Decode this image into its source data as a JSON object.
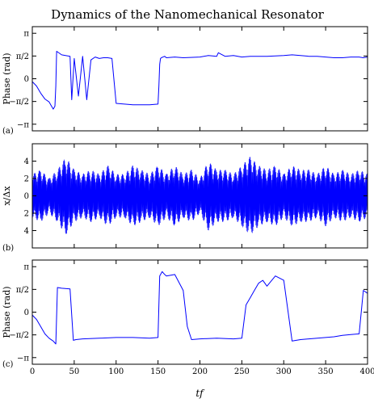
{
  "chart_data": {
    "type": "line",
    "title": "Dynamics of the Nanomechanical Resonator",
    "xlabel": "tf",
    "xlim": [
      0,
      400
    ],
    "x_ticks": [
      0,
      50,
      100,
      150,
      200,
      250,
      300,
      350,
      400
    ],
    "x_tick_labels": [
      "0",
      "50",
      "100",
      "150",
      "200",
      "250",
      "300",
      "350",
      "400"
    ],
    "line_color": "#0000ff",
    "panels": [
      {
        "label": "(a)",
        "ylabel": "Phase (rad)",
        "ylim": [
          -3.6,
          3.6
        ],
        "y_ticks": [
          3.1416,
          1.5708,
          0,
          -1.5708,
          -3.1416
        ],
        "y_tick_labels": [
          "π",
          "π/2",
          "0",
          "−π/2",
          "−π"
        ],
        "series": [
          {
            "x": [
              0,
              5,
              10,
              15,
              20,
              22,
              25,
              27,
              28,
              29,
              35,
              45,
              47,
              50,
              55,
              60,
              65,
              70,
              75,
              80,
              85,
              90,
              95,
              100,
              110,
              120,
              140,
              150,
              151,
              152,
              153,
              154,
              156,
              158,
              160,
              170,
              180,
              200,
              210,
              220,
              222,
              230,
              240,
              250,
              260,
              280,
              300,
              310,
              320,
              330,
              340,
              350,
              360,
              370,
              380,
              390,
              395,
              400
            ],
            "y": [
              -0.2,
              -0.5,
              -1.0,
              -1.4,
              -1.6,
              -1.8,
              -2.1,
              -1.9,
              -0.5,
              1.9,
              1.65,
              1.55,
              -1.45,
              1.4,
              -1.2,
              1.55,
              -1.45,
              1.3,
              1.5,
              1.4,
              1.45,
              1.45,
              1.4,
              -1.7,
              -1.75,
              -1.8,
              -1.8,
              -1.75,
              -0.5,
              1.0,
              1.4,
              1.45,
              1.5,
              1.55,
              1.45,
              1.5,
              1.45,
              1.5,
              1.6,
              1.55,
              1.8,
              1.55,
              1.6,
              1.5,
              1.55,
              1.55,
              1.6,
              1.65,
              1.6,
              1.55,
              1.55,
              1.5,
              1.45,
              1.45,
              1.5,
              1.5,
              1.45,
              1.5
            ]
          }
        ]
      },
      {
        "label": "(b)",
        "ylabel": "x/Δx",
        "ylim": [
          -6,
          6
        ],
        "y_ticks": [
          4,
          2,
          0,
          -2,
          -4
        ],
        "y_tick_labels": [
          "4",
          "2",
          "0",
          "2",
          "4"
        ],
        "series": [
          {
            "x": [
              0,
              10,
              20,
              30,
              40,
              50,
              60,
              70,
              80,
              90,
              100,
              110,
              120,
              130,
              140,
              150,
              160,
              170,
              180,
              190,
              200,
              210,
              220,
              230,
              240,
              250,
              260,
              270,
              280,
              290,
              300,
              310,
              320,
              330,
              340,
              350,
              360,
              370,
              380,
              390,
              400
            ],
            "y": [
              2.5,
              3.0,
              2.0,
              3.0,
              4.5,
              3.0,
              2.5,
              3.0,
              2.5,
              3.5,
              2.5,
              2.5,
              3.5,
              3.0,
              2.5,
              3.5,
              2.5,
              3.5,
              2.5,
              3.0,
              2.0,
              4.0,
              3.0,
              3.0,
              2.5,
              3.5,
              4.5,
              3.5,
              3.0,
              3.5,
              2.5,
              3.5,
              3.0,
              3.0,
              2.5,
              3.5,
              2.5,
              3.0,
              2.5,
              3.0,
              2.5
            ]
          }
        ]
      },
      {
        "label": "(c)",
        "ylabel": "Phase (rad)",
        "ylim": [
          -3.6,
          3.6
        ],
        "y_ticks": [
          3.1416,
          1.5708,
          0,
          -1.5708,
          -3.1416
        ],
        "y_tick_labels": [
          "π",
          "π/2",
          "0",
          "−π/2",
          "−π"
        ],
        "series": [
          {
            "x": [
              0,
              5,
              10,
              15,
              20,
              25,
              28,
              30,
              35,
              45,
              49,
              52,
              60,
              80,
              100,
              120,
              140,
              150,
              152,
              155,
              158,
              160,
              170,
              180,
              185,
              190,
              200,
              220,
              240,
              250,
              255,
              260,
              265,
              270,
              275,
              280,
              290,
              300,
              310,
              320,
              330,
              340,
              350,
              360,
              370,
              380,
              390,
              395,
              400
            ],
            "y": [
              -0.2,
              -0.5,
              -1.0,
              -1.5,
              -1.8,
              -2.0,
              -2.2,
              1.7,
              1.65,
              1.6,
              -1.95,
              -1.9,
              -1.85,
              -1.8,
              -1.75,
              -1.75,
              -1.8,
              -1.75,
              2.5,
              2.8,
              2.6,
              2.5,
              2.6,
              1.5,
              -1.0,
              -1.9,
              -1.85,
              -1.8,
              -1.85,
              -1.8,
              0.5,
              1.0,
              1.5,
              2.0,
              2.2,
              1.8,
              2.5,
              2.2,
              -2.0,
              -1.9,
              -1.85,
              -1.8,
              -1.75,
              -1.7,
              -1.6,
              -1.55,
              -1.5,
              1.5,
              1.3
            ]
          }
        ]
      }
    ]
  }
}
